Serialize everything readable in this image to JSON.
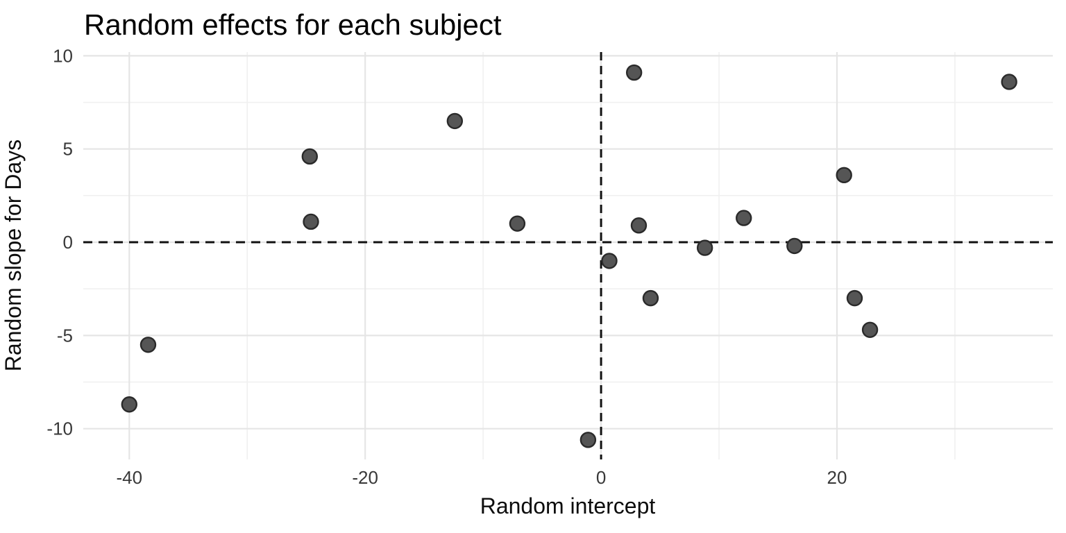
{
  "chart_data": {
    "type": "scatter",
    "title": "Random effects for each subject",
    "xlabel": "Random intercept",
    "ylabel": "Random slope for Days",
    "xlim": [
      -43.9,
      38.3
    ],
    "ylim": [
      -11.65,
      10.2
    ],
    "x_ticks": {
      "values": [
        -40,
        -20,
        0,
        20
      ],
      "labels": [
        "-40",
        "-20",
        "0",
        "20"
      ],
      "minor": [
        -30,
        -10,
        10,
        30
      ]
    },
    "y_ticks": {
      "values": [
        10,
        5,
        0,
        -5,
        -10
      ],
      "labels": [
        "10",
        "5",
        "0",
        "-5",
        "-10"
      ],
      "minor": [
        7.5,
        2.5,
        -2.5,
        -7.5
      ]
    },
    "grid": "major+minor",
    "legend": "none",
    "reference_lines": [
      {
        "orientation": "vertical",
        "x": 0,
        "style": "dashed"
      },
      {
        "orientation": "horizontal",
        "y": 0,
        "style": "dashed"
      }
    ],
    "n_points": 18,
    "points": [
      {
        "x": -40.0,
        "y": -8.7
      },
      {
        "x": -38.4,
        "y": -5.5
      },
      {
        "x": -24.7,
        "y": 4.6
      },
      {
        "x": -24.6,
        "y": 1.1
      },
      {
        "x": -12.4,
        "y": 6.5
      },
      {
        "x": -7.1,
        "y": 1.0
      },
      {
        "x": -1.1,
        "y": -10.6
      },
      {
        "x": 0.7,
        "y": -1.0
      },
      {
        "x": 2.8,
        "y": 9.1
      },
      {
        "x": 3.2,
        "y": 0.9
      },
      {
        "x": 4.2,
        "y": -3.0
      },
      {
        "x": 8.8,
        "y": -0.3
      },
      {
        "x": 12.1,
        "y": 1.3
      },
      {
        "x": 16.4,
        "y": -0.2
      },
      {
        "x": 20.6,
        "y": 3.6
      },
      {
        "x": 21.5,
        "y": -3.0
      },
      {
        "x": 22.8,
        "y": -4.7
      },
      {
        "x": 34.6,
        "y": 8.6
      }
    ],
    "colors": {
      "background": "#ffffff",
      "point_fill": "#555555",
      "point_stroke": "#2a2a2a",
      "grid_major": "#e5e5e5",
      "grid_minor": "#f0f0f0",
      "reference_line": "#111111",
      "tick_label": "#383838",
      "axis_title": "#0d0d0d",
      "title": "#000000"
    }
  }
}
